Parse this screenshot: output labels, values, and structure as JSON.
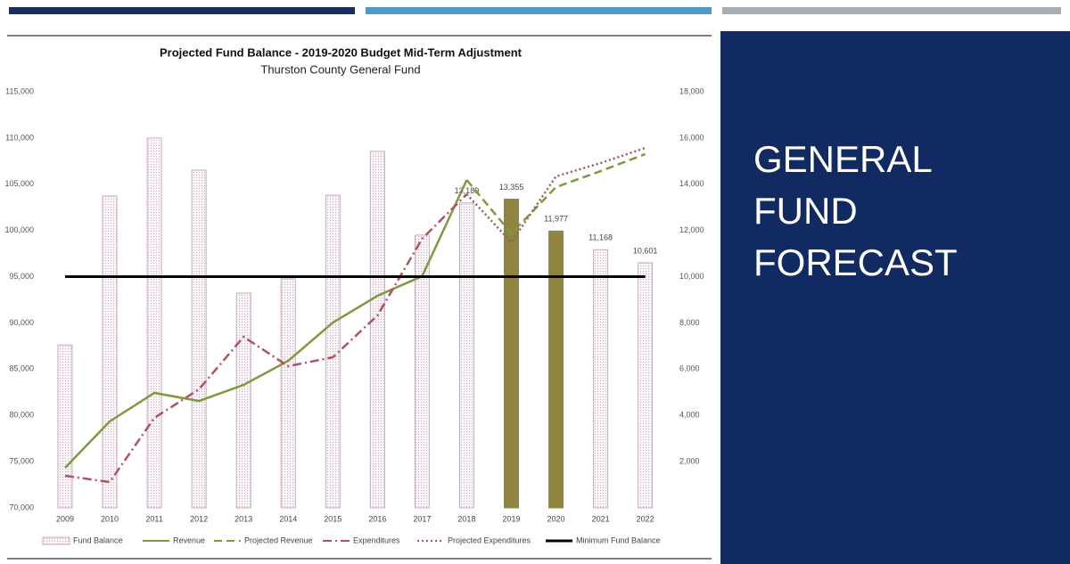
{
  "chart_data": {
    "type": "combo",
    "title": "Projected Fund Balance - 2019-2020 Budget Mid-Term Adjustment",
    "subtitle": "Thurston County General Fund",
    "categories": [
      "2009",
      "2010",
      "2011",
      "2012",
      "2013",
      "2014",
      "2015",
      "2016",
      "2017",
      "2018",
      "2019",
      "2020",
      "2021",
      "2022"
    ],
    "ylim": [
      70000,
      115000
    ],
    "yticks": [
      {
        "value": 70000,
        "label": "70,000"
      },
      {
        "value": 75000,
        "label": "75,000"
      },
      {
        "value": 80000,
        "label": "80,000"
      },
      {
        "value": 85000,
        "label": "85,000"
      },
      {
        "value": 90000,
        "label": "90,000"
      },
      {
        "value": 95000,
        "label": "95,000"
      },
      {
        "value": 100000,
        "label": "100,000"
      },
      {
        "value": 105000,
        "label": "105,000"
      },
      {
        "value": 110000,
        "label": "110,000"
      },
      {
        "value": 115000,
        "label": "115,000"
      }
    ],
    "y2lim": [
      0,
      18000
    ],
    "y2ticks": [
      {
        "value": 2000,
        "label": "2,000"
      },
      {
        "value": 4000,
        "label": "4,000"
      },
      {
        "value": 6000,
        "label": "6,000"
      },
      {
        "value": 8000,
        "label": "8,000"
      },
      {
        "value": 10000,
        "label": "10,000"
      },
      {
        "value": 12000,
        "label": "12,000"
      },
      {
        "value": 14000,
        "label": "14,000"
      },
      {
        "value": 16000,
        "label": "16,000"
      },
      {
        "value": 18000,
        "label": "18,000"
      }
    ],
    "series": [
      {
        "name": "Fund Balance",
        "type": "bar",
        "axis": "y2",
        "color": "#c9a9c0",
        "point_colors": [
          "#c9a9c0",
          "#c9a9c0",
          "#c9a9c0",
          "#c9a9c0",
          "#c9a9c0",
          "#c9a9c0",
          "#c9a9c0",
          "#c9a9c0",
          "#c9a9c0",
          "#c9a9c0",
          "#8f8540",
          "#8f8540",
          "#c9a9c0",
          "#c9a9c0"
        ],
        "values": [
          7050,
          13490,
          16000,
          14610,
          9290,
          9910,
          13530,
          15420,
          11800,
          13189,
          13355,
          11977,
          11168,
          10601
        ],
        "value_labels": [
          null,
          null,
          null,
          null,
          null,
          null,
          null,
          null,
          null,
          "13,189",
          "13,355",
          "11,977",
          "11,168",
          "10,601"
        ]
      },
      {
        "name": "Revenue",
        "type": "line",
        "dash": "solid",
        "color": "#7f9a3e",
        "values": [
          74340,
          79350,
          82430,
          81560,
          83300,
          85900,
          90040,
          92930,
          95050,
          105460,
          null,
          null,
          null,
          null
        ]
      },
      {
        "name": "Projected Revenue",
        "type": "line",
        "dash": "dashed",
        "color": "#7f9a3e",
        "values": [
          null,
          null,
          null,
          null,
          null,
          null,
          null,
          null,
          null,
          105460,
          99680,
          104690,
          106420,
          108260
        ]
      },
      {
        "name": "Expenditures",
        "type": "line",
        "dash": "dashdot",
        "color": "#b5515e",
        "values": [
          73470,
          72790,
          79730,
          82820,
          88500,
          85320,
          86290,
          90810,
          99100,
          103920,
          null,
          null,
          null,
          null
        ]
      },
      {
        "name": "Projected Expenditures",
        "type": "line",
        "dash": "dotted",
        "color": "#9e5a5a",
        "values": [
          null,
          null,
          null,
          null,
          null,
          null,
          null,
          null,
          null,
          103920,
          98720,
          105850,
          107290,
          108930
        ]
      },
      {
        "name": "Minimum Fund Balance",
        "type": "line",
        "dash": "solid",
        "axis": "y2",
        "color": "#000000",
        "values": [
          10000,
          10000,
          10000,
          10000,
          10000,
          10000,
          10000,
          10000,
          10000,
          10000,
          10000,
          10000,
          10000,
          10000
        ]
      }
    ]
  },
  "slide": {
    "panel_title_lines": [
      "GENERAL",
      "FUND",
      "FORECAST"
    ]
  }
}
